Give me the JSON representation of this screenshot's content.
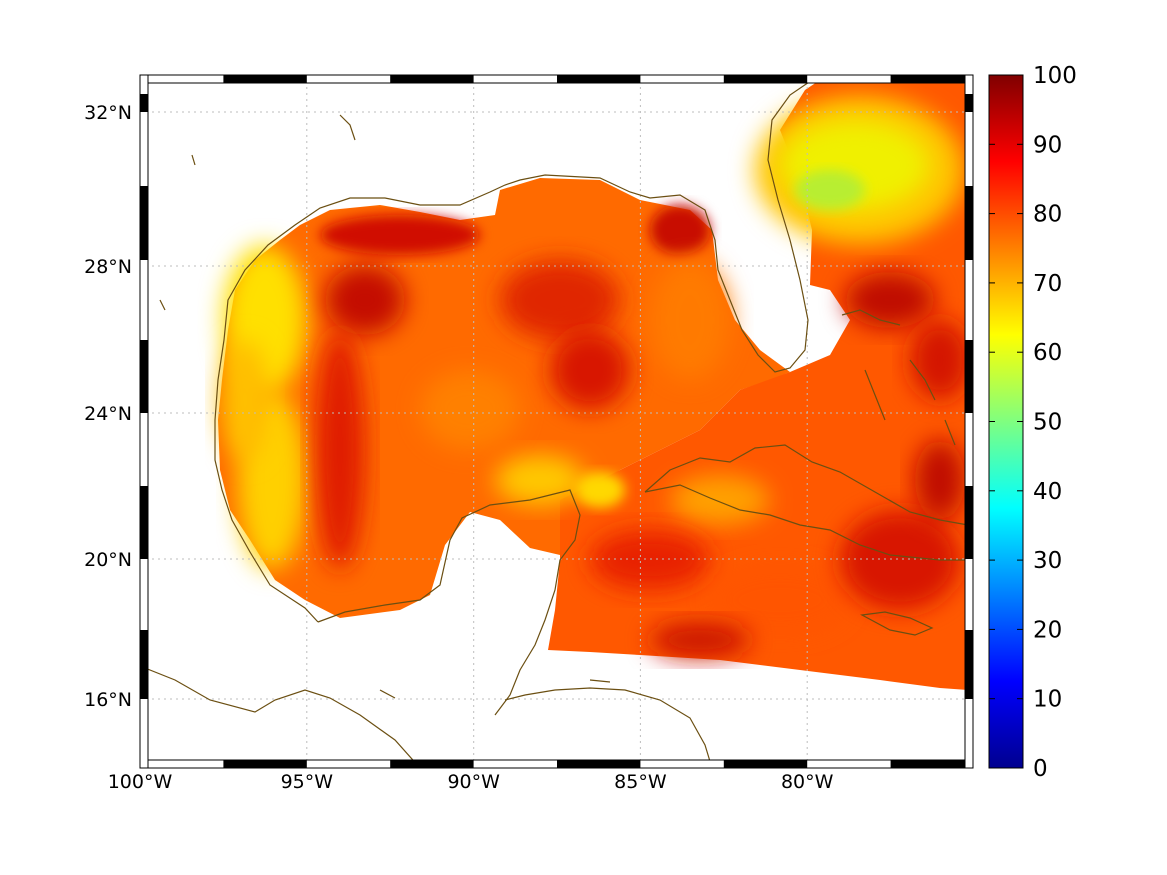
{
  "map": {
    "x_ticks": [
      {
        "lon": -100,
        "label": "100°W"
      },
      {
        "lon": -95,
        "label": "95°W"
      },
      {
        "lon": -90,
        "label": "90°W"
      },
      {
        "lon": -85,
        "label": "85°W"
      },
      {
        "lon": -80,
        "label": "80°W"
      }
    ],
    "y_ticks": [
      {
        "lat": 32,
        "label": "32°N"
      },
      {
        "lat": 28,
        "label": "28°N"
      },
      {
        "lat": 24,
        "label": "24°N"
      },
      {
        "lat": 20,
        "label": "20°N"
      },
      {
        "lat": 16,
        "label": "16°N"
      }
    ],
    "lon_range": [
      -100,
      -75.1
    ],
    "lat_range": [
      14.2,
      33.0
    ],
    "grid": true,
    "coastline_color": "#6b4f12"
  },
  "colorbar": {
    "ticks": [
      "0",
      "10",
      "20",
      "30",
      "40",
      "50",
      "60",
      "70",
      "80",
      "90",
      "100"
    ],
    "range": [
      0,
      100
    ],
    "colormap": "jet"
  }
}
